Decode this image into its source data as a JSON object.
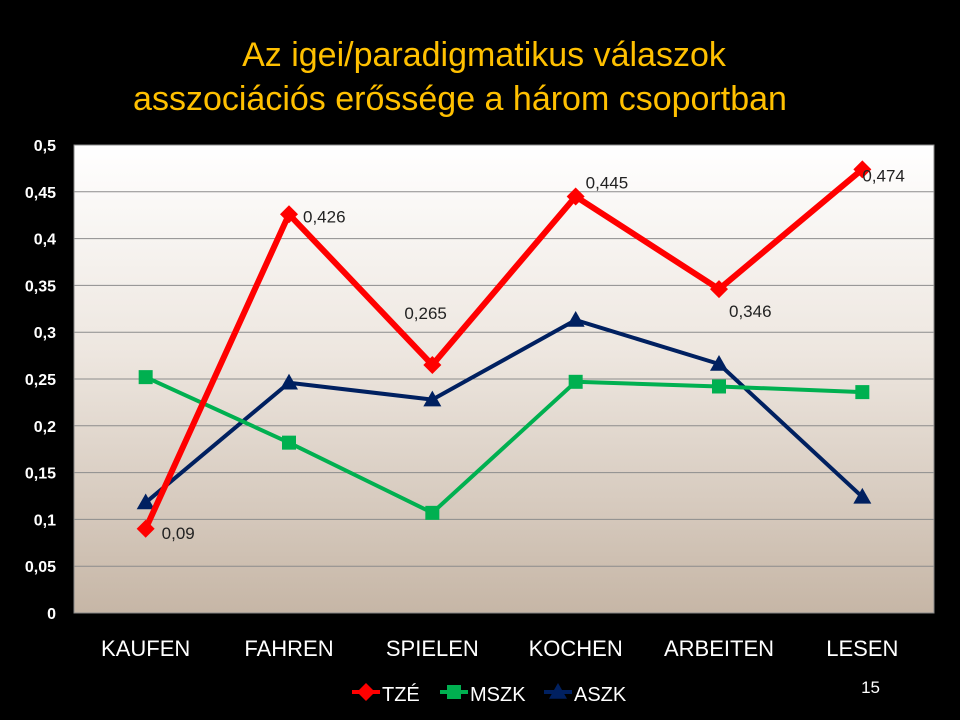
{
  "slide": {
    "page_number": "15"
  },
  "chart_data": {
    "type": "line",
    "title": "Az igei/paradigmatikus válaszok asszociációs erőssége a három csoportban",
    "title_lines": [
      "Az igei/paradigmatikus válaszok",
      "asszociációs erőssége a három csoportban"
    ],
    "categories": [
      "KAUFEN",
      "FAHREN",
      "SPIELEN",
      "KOCHEN",
      "ARBEITEN",
      "LESEN"
    ],
    "ylim": [
      0,
      0.5
    ],
    "yticks": [
      0,
      0.05,
      0.1,
      0.15,
      0.2,
      0.25,
      0.3,
      0.35,
      0.4,
      0.45,
      0.5
    ],
    "ytick_labels": [
      "0",
      "0,05",
      "0,1",
      "0,15",
      "0,2",
      "0,25",
      "0,3",
      "0,35",
      "0,4",
      "0,45",
      "0,5"
    ],
    "grid": true,
    "legend_position": "bottom",
    "series": [
      {
        "name": "TZÉ",
        "color": "#ff0000",
        "marker": "diamond",
        "values": [
          0.09,
          0.426,
          0.265,
          0.445,
          0.346,
          0.474
        ],
        "data_labels": [
          "0,09",
          "0,426",
          "0,265",
          "0,445",
          "0,346",
          "0,474"
        ]
      },
      {
        "name": "MSZK",
        "color": "#00b050",
        "marker": "square",
        "values": [
          0.252,
          0.182,
          0.107,
          0.247,
          0.242,
          0.236
        ]
      },
      {
        "name": "ASZK",
        "color": "#002060",
        "marker": "triangle",
        "values": [
          0.118,
          0.246,
          0.228,
          0.313,
          0.266,
          0.124
        ]
      }
    ]
  }
}
